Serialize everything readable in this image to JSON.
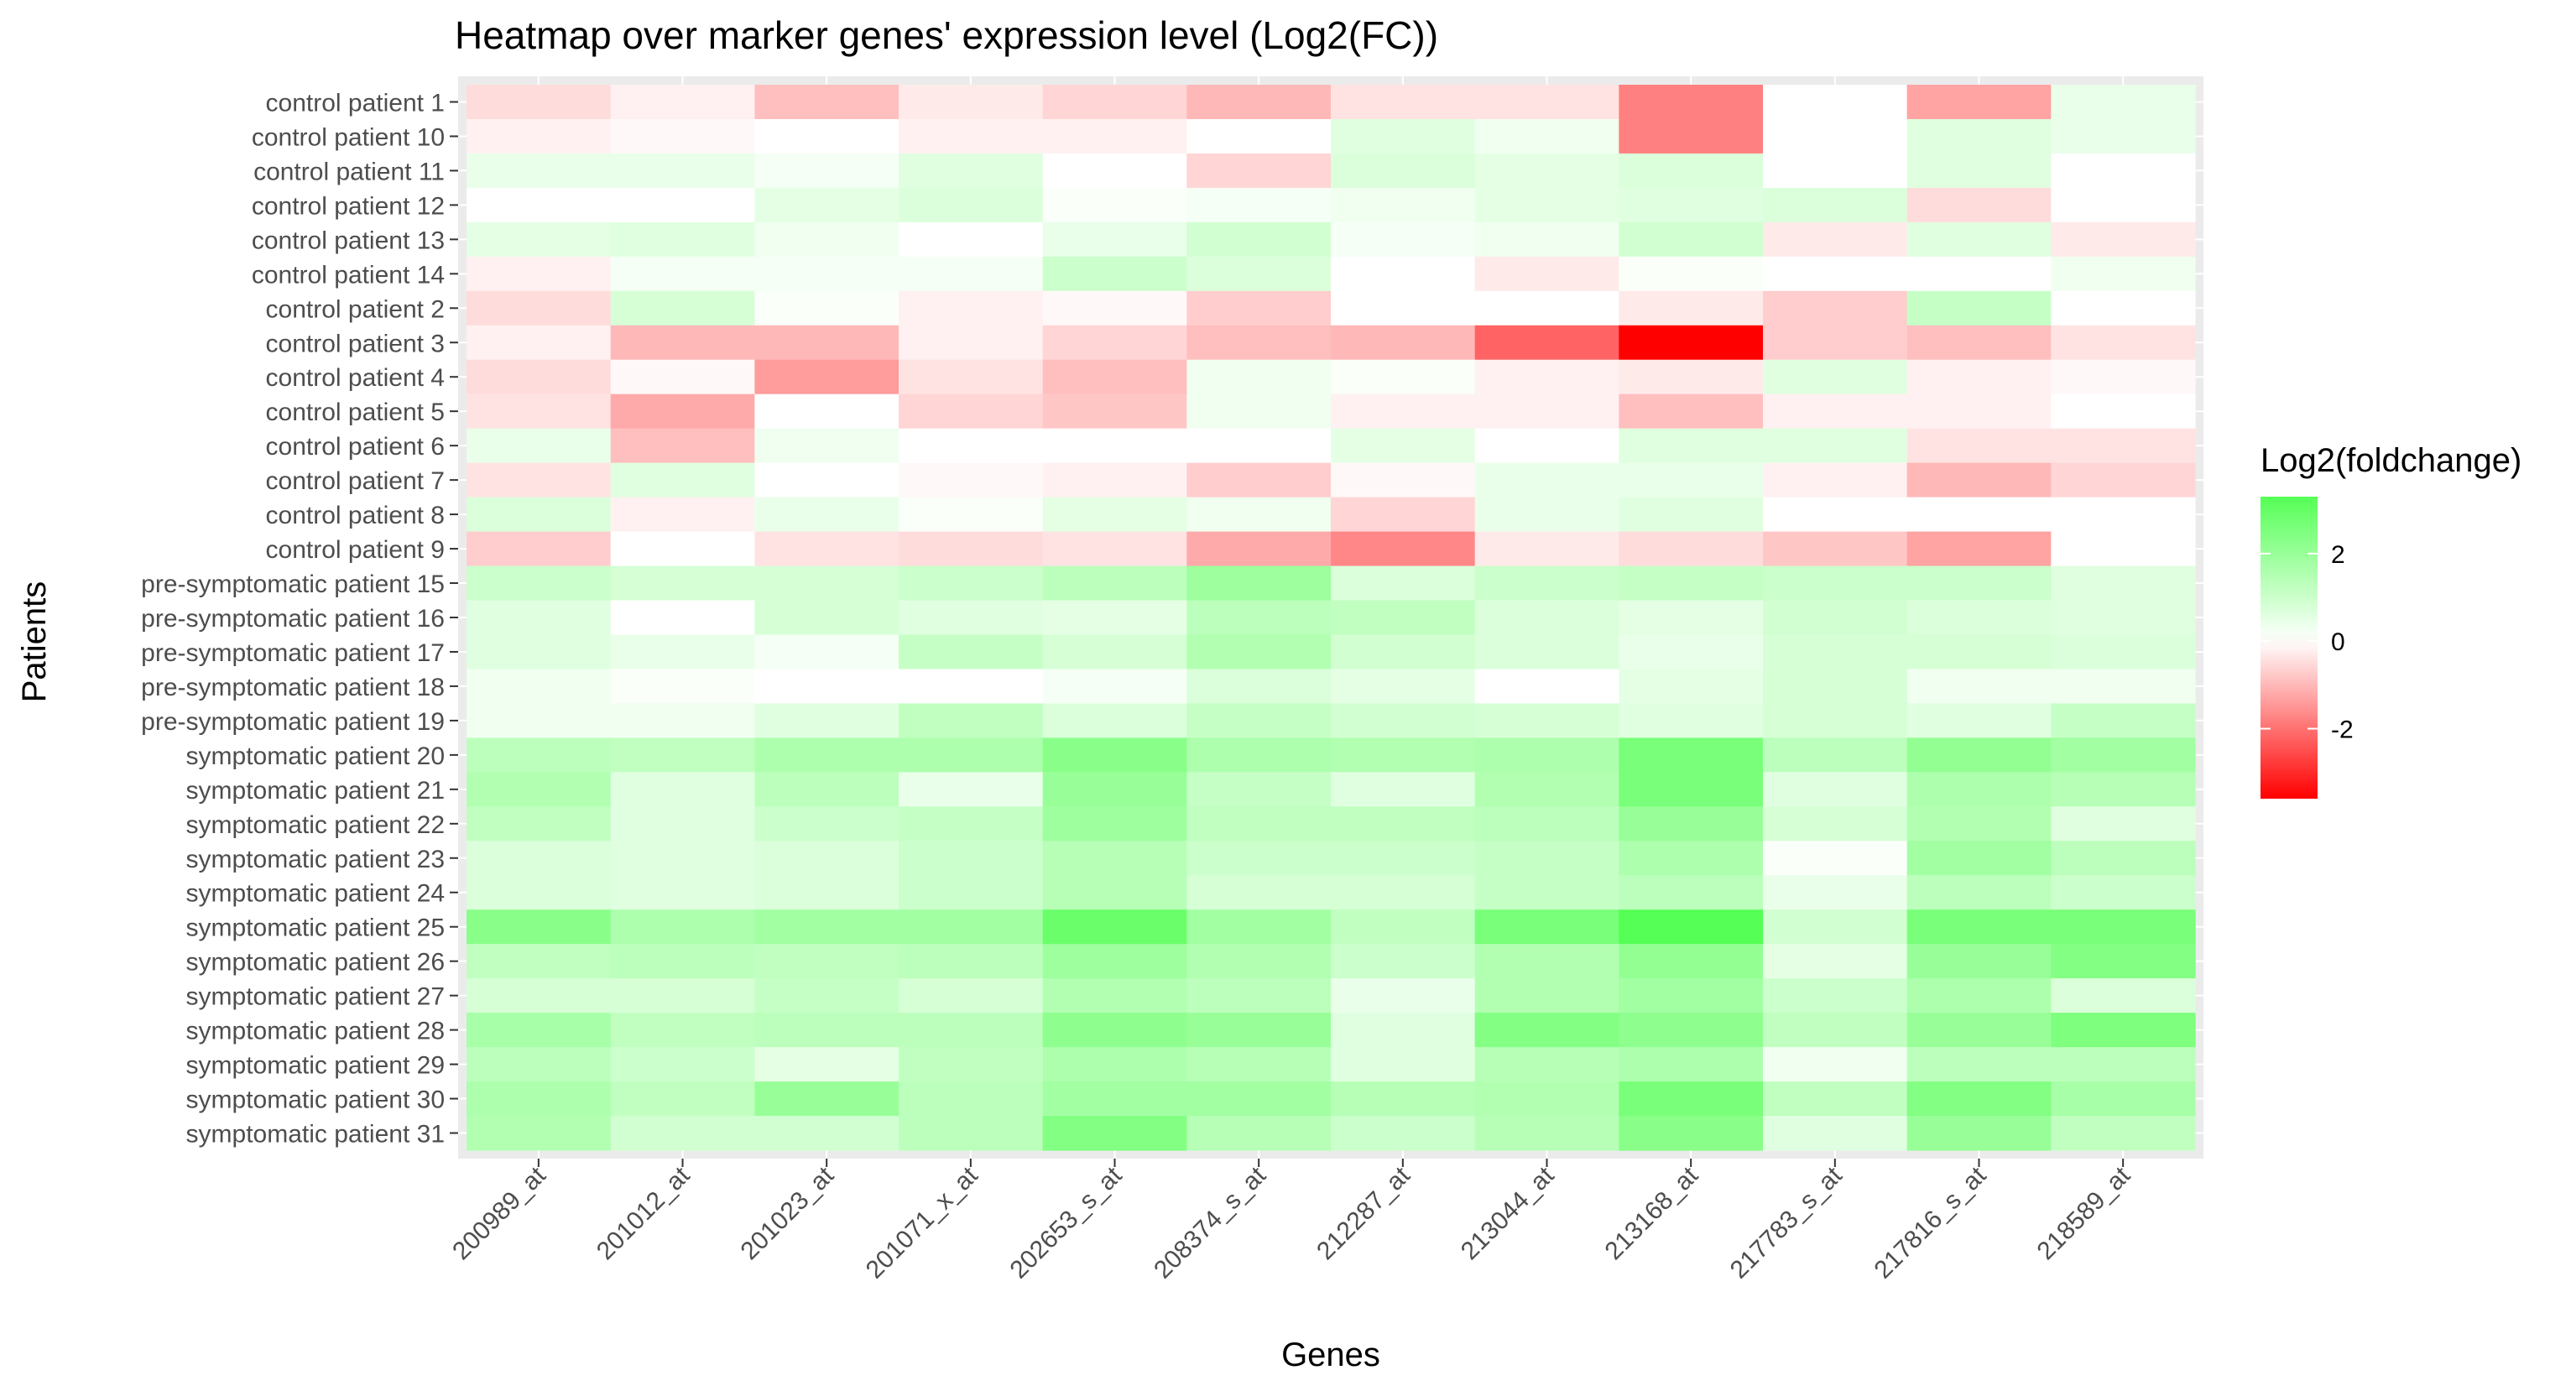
{
  "chart_data": {
    "type": "heatmap",
    "title": "Heatmap over marker genes' expression level (Log2(FC))",
    "xlabel": "Genes",
    "ylabel": "Patients",
    "x_categories": [
      "200989_at",
      "201012_at",
      "201023_at",
      "201071_x_at",
      "202653_s_at",
      "208374_s_at",
      "212287_at",
      "213044_at",
      "213168_at",
      "217783_s_at",
      "217816_s_at",
      "218589_at"
    ],
    "y_categories": [
      "control patient 1",
      "control patient 10",
      "control patient 11",
      "control patient 12",
      "control patient 13",
      "control patient 14",
      "control patient 2",
      "control patient 3",
      "control patient 4",
      "control patient 5",
      "control patient 6",
      "control patient 7",
      "control patient 8",
      "control patient 9",
      "pre-symptomatic patient 15",
      "pre-symptomatic patient 16",
      "pre-symptomatic patient 17",
      "pre-symptomatic patient 18",
      "pre-symptomatic patient 19",
      "symptomatic patient 20",
      "symptomatic patient 21",
      "symptomatic patient 22",
      "symptomatic patient 23",
      "symptomatic patient 24",
      "symptomatic patient 25",
      "symptomatic patient 26",
      "symptomatic patient 27",
      "symptomatic patient 28",
      "symptomatic patient 29",
      "symptomatic patient 30",
      "symptomatic patient 31"
    ],
    "values": [
      [
        -0.5,
        -0.2,
        -0.9,
        -0.3,
        -0.6,
        -1.0,
        -0.4,
        -0.4,
        -1.8,
        0.0,
        -1.3,
        0.4
      ],
      [
        -0.2,
        -0.1,
        0.0,
        -0.2,
        -0.2,
        0.0,
        0.6,
        0.3,
        -1.8,
        0.0,
        0.6,
        0.4
      ],
      [
        0.4,
        0.4,
        0.2,
        0.6,
        0.0,
        -0.6,
        0.7,
        0.5,
        0.7,
        0.0,
        0.6,
        0.0
      ],
      [
        0.0,
        0.0,
        0.5,
        0.7,
        0.1,
        0.2,
        0.3,
        0.5,
        0.6,
        0.7,
        -0.5,
        0.0
      ],
      [
        0.5,
        0.6,
        0.3,
        0.0,
        0.4,
        0.9,
        0.2,
        0.3,
        0.9,
        -0.3,
        0.6,
        -0.3
      ],
      [
        -0.2,
        0.2,
        0.2,
        0.2,
        1.0,
        0.7,
        0.0,
        -0.3,
        0.1,
        0.0,
        0.0,
        0.3
      ],
      [
        -0.5,
        0.8,
        0.1,
        -0.2,
        -0.1,
        -0.7,
        0.0,
        0.0,
        -0.3,
        -0.7,
        1.1,
        0.0
      ],
      [
        -0.2,
        -1.0,
        -1.0,
        -0.2,
        -0.6,
        -0.9,
        -1.0,
        -2.2,
        -3.6,
        -0.7,
        -0.9,
        -0.4
      ],
      [
        -0.5,
        -0.1,
        -1.4,
        -0.4,
        -0.9,
        0.3,
        0.1,
        -0.2,
        -0.3,
        0.6,
        -0.2,
        -0.1
      ],
      [
        -0.4,
        -1.2,
        0.0,
        -0.6,
        -0.8,
        0.3,
        -0.2,
        -0.2,
        -0.9,
        -0.2,
        -0.2,
        0.0
      ],
      [
        0.4,
        -0.9,
        0.3,
        0.0,
        0.0,
        0.0,
        0.5,
        0.0,
        0.6,
        0.6,
        -0.4,
        -0.4
      ],
      [
        -0.4,
        0.6,
        0.0,
        -0.1,
        -0.2,
        -0.7,
        -0.1,
        0.4,
        0.4,
        -0.2,
        -1.0,
        -0.6
      ],
      [
        0.7,
        -0.2,
        0.4,
        0.1,
        0.5,
        0.3,
        -0.6,
        0.4,
        0.6,
        0.0,
        0.0,
        0.0
      ],
      [
        -0.7,
        0.0,
        -0.4,
        -0.5,
        -0.4,
        -1.2,
        -1.7,
        -0.3,
        -0.5,
        -0.8,
        -1.3,
        0.0
      ],
      [
        1.0,
        0.8,
        0.8,
        1.0,
        1.3,
        1.9,
        0.7,
        1.0,
        1.1,
        1.0,
        1.0,
        0.6
      ],
      [
        0.6,
        0.0,
        0.8,
        0.6,
        0.5,
        1.3,
        1.2,
        0.7,
        0.5,
        0.9,
        0.7,
        0.6
      ],
      [
        0.6,
        0.4,
        0.2,
        1.1,
        0.8,
        1.5,
        0.9,
        0.7,
        0.4,
        0.8,
        0.8,
        0.7
      ],
      [
        0.3,
        0.1,
        0.0,
        0.0,
        0.2,
        0.7,
        0.5,
        0.0,
        0.5,
        0.8,
        0.3,
        0.3
      ],
      [
        0.3,
        0.3,
        0.6,
        1.2,
        0.7,
        1.1,
        0.9,
        0.8,
        0.6,
        0.8,
        0.6,
        1.1
      ],
      [
        1.3,
        1.2,
        1.6,
        1.6,
        2.3,
        1.6,
        1.5,
        1.6,
        2.6,
        1.3,
        2.1,
        1.8
      ],
      [
        1.5,
        0.6,
        1.3,
        0.4,
        2.0,
        1.1,
        0.6,
        1.5,
        2.6,
        0.6,
        1.6,
        1.4
      ],
      [
        1.2,
        0.6,
        1.0,
        1.1,
        1.9,
        1.2,
        1.2,
        1.3,
        2.0,
        0.8,
        1.5,
        0.6
      ],
      [
        0.7,
        0.6,
        0.7,
        1.0,
        1.4,
        1.0,
        1.0,
        1.1,
        1.6,
        0.1,
        1.8,
        1.3
      ],
      [
        0.7,
        0.6,
        0.7,
        1.0,
        1.4,
        0.8,
        0.8,
        1.1,
        1.3,
        0.4,
        1.3,
        1.0
      ],
      [
        2.3,
        1.6,
        1.8,
        1.8,
        2.9,
        1.8,
        1.2,
        2.6,
        3.3,
        0.9,
        2.6,
        2.6
      ],
      [
        1.2,
        1.3,
        1.2,
        1.3,
        1.9,
        1.5,
        1.0,
        1.5,
        2.1,
        0.5,
        2.0,
        2.4
      ],
      [
        0.8,
        0.8,
        1.1,
        0.8,
        1.5,
        1.3,
        0.4,
        1.5,
        1.8,
        1.0,
        1.6,
        0.7
      ],
      [
        1.7,
        1.2,
        1.3,
        1.3,
        2.2,
        2.0,
        0.6,
        2.4,
        2.2,
        1.2,
        2.0,
        2.5
      ],
      [
        1.3,
        1.0,
        0.5,
        1.2,
        1.6,
        1.4,
        0.6,
        1.4,
        1.6,
        0.3,
        1.3,
        1.3
      ],
      [
        1.6,
        1.2,
        2.0,
        1.3,
        1.8,
        1.8,
        1.4,
        1.5,
        2.6,
        1.2,
        2.4,
        1.7
      ],
      [
        1.5,
        0.9,
        0.9,
        1.3,
        2.4,
        1.4,
        1.0,
        1.4,
        2.3,
        0.6,
        2.0,
        1.2
      ]
    ],
    "color_scale": {
      "low": "#ff0000",
      "mid": "#ffffff",
      "high": "#55ff55",
      "limits": [
        -3.6,
        3.3
      ]
    },
    "legend": {
      "title": "Log2(foldchange)",
      "ticks": [
        2,
        0,
        -2
      ],
      "tick_labels": [
        "2",
        "0",
        "-2"
      ],
      "position": "right"
    },
    "panel_background": "#ebebeb",
    "grid": true
  }
}
